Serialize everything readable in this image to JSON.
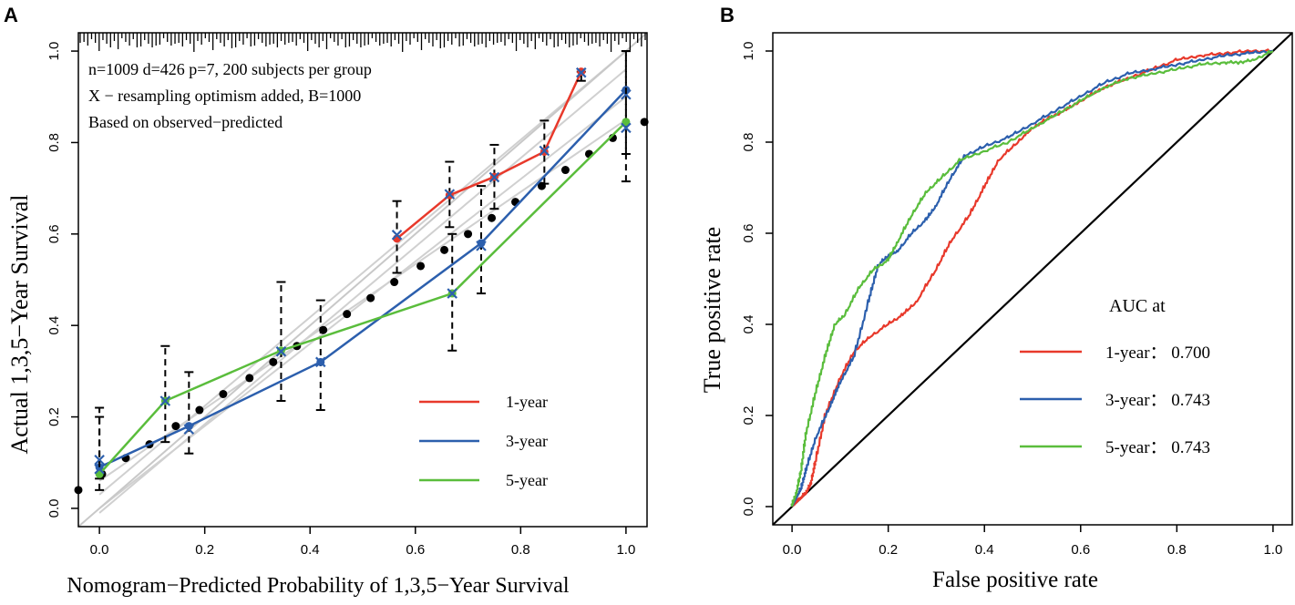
{
  "chart_data": [
    {
      "panel_label": "A",
      "type": "line",
      "title": "",
      "xlabel": "Nomogram−Predicted Probability of 1,3,5−Year Survival",
      "ylabel": "Actual 1,3,5−Year Survival",
      "xlim": [
        -0.04,
        1.04
      ],
      "ylim": [
        -0.04,
        1.04
      ],
      "xticks": [
        "0.0",
        "0.2",
        "0.4",
        "0.6",
        "0.8",
        "1.0"
      ],
      "yticks": [
        "0.0",
        "0.2",
        "0.4",
        "0.6",
        "0.8",
        "1.0"
      ],
      "annotations": [
        "n=1009 d=426 p=7, 200 subjects per group",
        "X − resampling optimism added, B=1000",
        "Based on observed−predicted"
      ],
      "series": [
        {
          "name": "1-year",
          "color": "#e8392b",
          "x": [
            0.565,
            0.665,
            0.75,
            0.845,
            0.915
          ],
          "y": [
            0.59,
            0.685,
            0.725,
            0.78,
            0.955
          ],
          "corrected_y": [
            0.598,
            0.687,
            0.724,
            0.782,
            0.953
          ],
          "ci_low": [
            0.515,
            0.615,
            0.655,
            0.71,
            0.935
          ],
          "ci_high": [
            0.672,
            0.758,
            0.795,
            0.848,
            0.955
          ]
        },
        {
          "name": "3-year",
          "color": "#2c5fad",
          "x": [
            0.0,
            0.17,
            0.42,
            0.725,
            1.0
          ],
          "y": [
            0.09,
            0.18,
            0.32,
            0.58,
            0.915
          ],
          "corrected_y": [
            0.106,
            0.173,
            0.32,
            0.574,
            0.905
          ],
          "ci_low": [
            0.04,
            0.12,
            0.215,
            0.47,
            0.775
          ],
          "ci_high": [
            0.2,
            0.298,
            0.455,
            0.705,
            1.0
          ]
        },
        {
          "name": "5-year",
          "color": "#5abd3c",
          "x": [
            0.0,
            0.125,
            0.345,
            0.67,
            1.0
          ],
          "y": [
            0.075,
            0.235,
            0.345,
            0.47,
            0.845
          ],
          "corrected_y": [
            0.086,
            0.235,
            0.343,
            0.47,
            0.832
          ],
          "ci_low": [
            0.065,
            0.145,
            0.235,
            0.345,
            0.715
          ],
          "ci_high": [
            0.22,
            0.355,
            0.495,
            0.6,
            1.0
          ]
        }
      ],
      "ideal_black_dots": {
        "x": [
          -0.04,
          0.005,
          0.05,
          0.095,
          0.145,
          0.19,
          0.235,
          0.285,
          0.33,
          0.375,
          0.425,
          0.47,
          0.515,
          0.56,
          0.61,
          0.655,
          0.7,
          0.745,
          0.79,
          0.84,
          0.885,
          0.93,
          0.975,
          1.035
        ],
        "y": [
          0.04,
          0.075,
          0.11,
          0.14,
          0.18,
          0.215,
          0.25,
          0.285,
          0.32,
          0.355,
          0.39,
          0.425,
          0.46,
          0.495,
          0.53,
          0.565,
          0.6,
          0.635,
          0.67,
          0.705,
          0.74,
          0.775,
          0.81,
          0.845
        ]
      },
      "rug_ticks": 150,
      "legend": [
        "1-year",
        "3-year",
        "5-year"
      ],
      "legend_placement": "bottom-right"
    },
    {
      "panel_label": "B",
      "type": "line",
      "title": "",
      "xlabel": "False positive rate",
      "ylabel": "True positive rate",
      "xlim": [
        -0.04,
        1.04
      ],
      "ylim": [
        -0.04,
        1.04
      ],
      "xticks": [
        "0.0",
        "0.2",
        "0.4",
        "0.6",
        "0.8",
        "1.0"
      ],
      "yticks": [
        "0.0",
        "0.2",
        "0.4",
        "0.6",
        "0.8",
        "1.0"
      ],
      "legend_title": "AUC at",
      "legend_placement": "right-middle",
      "series": [
        {
          "name": "1-year",
          "auc_label": "1-year： 0.700",
          "color": "#e8392b",
          "x": [
            0,
            0.01,
            0.02,
            0.03,
            0.04,
            0.05,
            0.07,
            0.1,
            0.13,
            0.16,
            0.2,
            0.23,
            0.26,
            0.3,
            0.33,
            0.37,
            0.4,
            0.43,
            0.47,
            0.5,
            0.53,
            0.57,
            0.6,
            0.65,
            0.7,
            0.75,
            0.8,
            0.85,
            0.9,
            0.95,
            1.0
          ],
          "y": [
            0,
            0.01,
            0.02,
            0.03,
            0.05,
            0.1,
            0.2,
            0.28,
            0.34,
            0.37,
            0.4,
            0.42,
            0.45,
            0.52,
            0.58,
            0.64,
            0.7,
            0.76,
            0.8,
            0.83,
            0.85,
            0.87,
            0.89,
            0.92,
            0.94,
            0.96,
            0.98,
            0.99,
            0.995,
            1.0,
            1.0
          ]
        },
        {
          "name": "3-year",
          "auc_label": "3-year： 0.743",
          "color": "#2c5fad",
          "x": [
            0,
            0.01,
            0.02,
            0.03,
            0.05,
            0.08,
            0.1,
            0.13,
            0.16,
            0.18,
            0.2,
            0.22,
            0.25,
            0.28,
            0.3,
            0.33,
            0.36,
            0.4,
            0.45,
            0.5,
            0.55,
            0.6,
            0.65,
            0.7,
            0.75,
            0.8,
            0.85,
            0.9,
            0.95,
            1.0
          ],
          "y": [
            0,
            0.02,
            0.04,
            0.08,
            0.15,
            0.22,
            0.27,
            0.33,
            0.45,
            0.53,
            0.55,
            0.56,
            0.6,
            0.63,
            0.66,
            0.72,
            0.77,
            0.79,
            0.81,
            0.84,
            0.87,
            0.9,
            0.93,
            0.95,
            0.96,
            0.97,
            0.98,
            0.99,
            0.995,
            1.0
          ]
        },
        {
          "name": "5-year",
          "auc_label": "5-year： 0.743",
          "color": "#5abd3c",
          "x": [
            0,
            0.01,
            0.02,
            0.03,
            0.05,
            0.07,
            0.09,
            0.11,
            0.14,
            0.17,
            0.2,
            0.22,
            0.25,
            0.28,
            0.31,
            0.35,
            0.4,
            0.45,
            0.5,
            0.55,
            0.6,
            0.65,
            0.7,
            0.75,
            0.8,
            0.85,
            0.9,
            0.93,
            0.96,
            1.0
          ],
          "y": [
            0,
            0.03,
            0.08,
            0.16,
            0.25,
            0.33,
            0.4,
            0.42,
            0.48,
            0.52,
            0.54,
            0.58,
            0.64,
            0.69,
            0.72,
            0.76,
            0.78,
            0.8,
            0.83,
            0.86,
            0.89,
            0.92,
            0.94,
            0.95,
            0.96,
            0.97,
            0.975,
            0.975,
            0.98,
            1.0
          ]
        }
      ],
      "diagonal": {
        "x": [
          -0.04,
          1.04
        ],
        "y": [
          -0.04,
          1.04
        ]
      }
    }
  ]
}
